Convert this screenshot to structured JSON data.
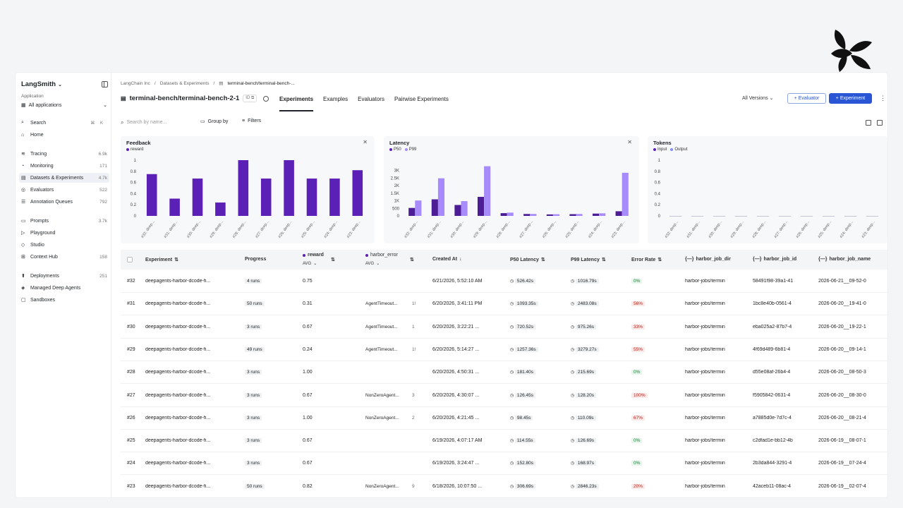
{
  "sidebar": {
    "brand": "LangSmith",
    "application_label": "Application",
    "application_value": "All applications",
    "items": [
      {
        "label": "Search",
        "shortcut": "⌘ K",
        "count": ""
      },
      {
        "label": "Home",
        "count": ""
      },
      {
        "label": "Tracing",
        "count": "6.9k"
      },
      {
        "label": "Monitoring",
        "count": "171"
      },
      {
        "label": "Datasets & Experiments",
        "count": "4.7k"
      },
      {
        "label": "Evaluators",
        "count": "522"
      },
      {
        "label": "Annotation Queues",
        "count": "792"
      },
      {
        "label": "Prompts",
        "count": "3.7k"
      },
      {
        "label": "Playground",
        "count": ""
      },
      {
        "label": "Studio",
        "count": ""
      },
      {
        "label": "Context Hub",
        "count": "158"
      },
      {
        "label": "Deployments",
        "count": "251"
      },
      {
        "label": "Managed Deep Agents",
        "count": ""
      },
      {
        "label": "Sandboxes",
        "count": ""
      }
    ]
  },
  "breadcrumb": {
    "org": "LangChain Inc",
    "section": "Datasets & Experiments",
    "current": "terminal-bench/terminal-bench-..."
  },
  "header": {
    "title": "terminal-bench/terminal-bench-2-1",
    "id_badge": "ID",
    "tabs": [
      "Experiments",
      "Examples",
      "Evaluators",
      "Pairwise Experiments"
    ],
    "versions": "All Versions",
    "evaluator_btn": "+ Evaluator",
    "experiment_btn": "+ Experiment"
  },
  "toolbar": {
    "search_placeholder": "Search by name...",
    "group_by": "Group by",
    "filters": "Filters"
  },
  "colors": {
    "primary": "#5b21b6",
    "light": "#a78bfa",
    "accent": "#2a56d6"
  },
  "chart_data": [
    {
      "type": "bar",
      "title": "Feedback",
      "categories": [
        "#32: deep...",
        "#31: deep...",
        "#30: deep...",
        "#29: deep...",
        "#28: deep...",
        "#27: deep...",
        "#26: deep...",
        "#25: deep...",
        "#24: deep...",
        "#23: deep..."
      ],
      "series": [
        {
          "name": "reward",
          "values": [
            0.75,
            0.31,
            0.67,
            0.24,
            1.0,
            0.67,
            1.0,
            0.67,
            0.67,
            0.82
          ]
        }
      ],
      "ylim": [
        0,
        1
      ],
      "yticks": [
        "0",
        "0.2",
        "0.4",
        "0.6",
        "0.8",
        "1"
      ]
    },
    {
      "type": "bar",
      "title": "Latency",
      "categories": [
        "#32: deep...",
        "#31: deep...",
        "#30: deep...",
        "#29: deep...",
        "#28: deep...",
        "#27: deep...",
        "#26: deep...",
        "#25: deep...",
        "#24: deep...",
        "#23: deep..."
      ],
      "series": [
        {
          "name": "P50",
          "values": [
            526.42,
            1093.35,
            720.52,
            1257.36,
            181.4,
            126.45,
            98.45,
            114.55,
            152.8,
            306.69
          ]
        },
        {
          "name": "P99",
          "values": [
            1016.79,
            2483.08,
            975.26,
            3279.27,
            215.69,
            128.2,
            110.09,
            126.69,
            168.97,
            2846.23
          ]
        }
      ],
      "ylim": [
        0,
        3400
      ],
      "yticks": [
        "0",
        "500",
        "1K",
        "1.5K",
        "2K",
        "2.5K",
        "3K"
      ]
    },
    {
      "type": "bar",
      "title": "Tokens",
      "categories": [
        "#32: deep...",
        "#31: deep...",
        "#30: deep...",
        "#29: deep...",
        "#28: deep...",
        "#27: deep...",
        "#26: deep...",
        "#25: deep...",
        "#24: deep...",
        "#23: deep..."
      ],
      "series": [
        {
          "name": "Input",
          "values": [
            0,
            0,
            0,
            0,
            0,
            0,
            0,
            0,
            0,
            0
          ]
        },
        {
          "name": "Output",
          "values": [
            0,
            0,
            0,
            0,
            0,
            0,
            0,
            0,
            0,
            0
          ]
        }
      ],
      "ylim": [
        0,
        1
      ],
      "yticks": [
        "0",
        "0.2",
        "0.4",
        "0.6",
        "0.8",
        "1"
      ]
    }
  ],
  "table": {
    "headers": {
      "experiment": "Experiment",
      "progress": "Progress",
      "reward": "reward",
      "reward_sub": "AVG",
      "harbor_error": "harbor_error",
      "harbor_error_sub": "AVG",
      "created": "Created At",
      "p50": "P50 Latency",
      "p99": "P99 Latency",
      "error_rate": "Error Rate",
      "job_dir": "harbor_job_dir",
      "job_id": "harbor_job_id",
      "job_name": "harbor_job_name"
    },
    "rows": [
      {
        "num": "#32",
        "name": "deepagents-harbor-dcode-fi...",
        "progress": "4 runs",
        "reward": "0.75",
        "error": "",
        "err_count": "",
        "created": "6/21/2026, 5:52:10 AM",
        "p50": "526.42s",
        "p99": "1016.79s",
        "rate": "0%",
        "dir": "harbor-jobs/termin",
        "id": "58491f98-39a1-41",
        "jobname": "2026-06-21__09-52-0"
      },
      {
        "num": "#31",
        "name": "deepagents-harbor-dcode-fi...",
        "progress": "50 runs",
        "reward": "0.31",
        "error": "AgentTimeout...",
        "err_count": "1!",
        "created": "6/20/2026, 3:41:11 PM",
        "p50": "1093.35s",
        "p99": "2483.08s",
        "rate": "56%",
        "dir": "harbor-jobs/termin",
        "id": "1bc8e40b-0561-4",
        "jobname": "2026-06-20__19-41-0"
      },
      {
        "num": "#30",
        "name": "deepagents-harbor-dcode-fi...",
        "progress": "3 runs",
        "reward": "0.67",
        "error": "AgentTimeout...",
        "err_count": "1",
        "created": "6/20/2026, 3:22:21 ...",
        "p50": "720.52s",
        "p99": "975.26s",
        "rate": "33%",
        "dir": "harbor-jobs/termin",
        "id": "eba025a2-87b7-4",
        "jobname": "2026-06-20__19-22-1"
      },
      {
        "num": "#29",
        "name": "deepagents-harbor-dcode-fi...",
        "progress": "49 runs",
        "reward": "0.24",
        "error": "AgentTimeout...",
        "err_count": "1!",
        "created": "6/20/2026, 5:14:27 ...",
        "p50": "1257.36s",
        "p99": "3279.27s",
        "rate": "55%",
        "dir": "harbor-jobs/termin",
        "id": "4f69d489-6b81-4",
        "jobname": "2026-06-20__09-14-1"
      },
      {
        "num": "#28",
        "name": "deepagents-harbor-dcode-fi...",
        "progress": "3 runs",
        "reward": "1.00",
        "error": "",
        "err_count": "",
        "created": "6/20/2026, 4:50:31 ...",
        "p50": "181.40s",
        "p99": "215.69s",
        "rate": "0%",
        "dir": "harbor-jobs/termin",
        "id": "d55e08af-26b4-4",
        "jobname": "2026-06-20__08-50-3"
      },
      {
        "num": "#27",
        "name": "deepagents-harbor-dcode-fi...",
        "progress": "3 runs",
        "reward": "0.67",
        "error": "NonZeroAgent...",
        "err_count": "3",
        "created": "6/20/2026, 4:30:07 ...",
        "p50": "126.45s",
        "p99": "128.20s",
        "rate": "100%",
        "dir": "harbor-jobs/termin",
        "id": "f5905842-0631-4",
        "jobname": "2026-06-20__08-30-0"
      },
      {
        "num": "#26",
        "name": "deepagents-harbor-dcode-fi...",
        "progress": "3 runs",
        "reward": "1.00",
        "error": "NonZeroAgent...",
        "err_count": "2",
        "created": "6/20/2026, 4:21:45 ...",
        "p50": "98.45s",
        "p99": "110.09s",
        "rate": "67%",
        "dir": "harbor-jobs/termin",
        "id": "a7885d0e-7d7c-4",
        "jobname": "2026-06-20__08-21-4"
      },
      {
        "num": "#25",
        "name": "deepagents-harbor-dcode-fi...",
        "progress": "3 runs",
        "reward": "0.67",
        "error": "",
        "err_count": "",
        "created": "6/19/2026, 4:07:17 AM",
        "p50": "114.55s",
        "p99": "126.69s",
        "rate": "0%",
        "dir": "harbor-jobs/termin",
        "id": "c2dfad1e-bb12-4b",
        "jobname": "2026-06-19__08-07-1"
      },
      {
        "num": "#24",
        "name": "deepagents-harbor-dcode-fi...",
        "progress": "3 runs",
        "reward": "0.67",
        "error": "",
        "err_count": "",
        "created": "6/19/2026, 3:24:47 ...",
        "p50": "152.80s",
        "p99": "168.97s",
        "rate": "0%",
        "dir": "harbor-jobs/termin",
        "id": "2b3da844-3291-4",
        "jobname": "2026-06-19__07-24-4"
      },
      {
        "num": "#23",
        "name": "deepagents-harbor-dcode-fi...",
        "progress": "50 runs",
        "reward": "0.82",
        "error": "NonZeroAgent...",
        "err_count": "9",
        "created": "6/18/2026, 10:07:50 ...",
        "p50": "306.69s",
        "p99": "2846.23s",
        "rate": "20%",
        "dir": "harbor-jobs/termin",
        "id": "42aceb11-08ac-4",
        "jobname": "2026-06-19__02-07-4"
      }
    ]
  }
}
